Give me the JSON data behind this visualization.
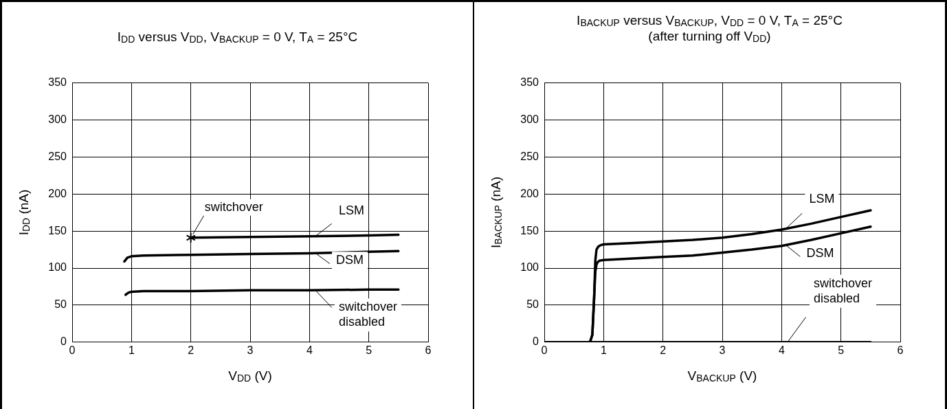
{
  "chart_data": [
    {
      "type": "line",
      "title": "I$_{DD}$ versus V$_{DD}$, V$_{BACKUP}$ = 0 V, T$_{A}$ = 25°C",
      "xlabel": "V$_{DD}$ (V)",
      "ylabel": "I$_{DD}$ (nA)",
      "xlim": [
        0,
        6
      ],
      "xticks": [
        0,
        1,
        2,
        3,
        4,
        5,
        6
      ],
      "ylim": [
        0,
        350
      ],
      "yticks": [
        0,
        50,
        100,
        150,
        200,
        250,
        300,
        350
      ],
      "grid": true,
      "marker": "none",
      "line_style": "solid",
      "annotations": [
        {
          "text": "switchover",
          "x": 2,
          "y": 141
        }
      ],
      "series": [
        {
          "name": "LSM",
          "color": "#000000",
          "x": [
            2,
            3,
            4,
            5,
            5.5
          ],
          "values": [
            141,
            142,
            143,
            144,
            145
          ]
        },
        {
          "name": "DSM",
          "color": "#000000",
          "x": [
            0.88,
            0.93,
            1,
            1.2,
            2,
            3,
            4,
            5,
            5.5
          ],
          "values": [
            109,
            114,
            116,
            117,
            118,
            119,
            120,
            122,
            123
          ]
        },
        {
          "name": "switchover disabled",
          "color": "#000000",
          "x": [
            0.9,
            0.95,
            1,
            1.2,
            2,
            3,
            4,
            5,
            5.5
          ],
          "values": [
            64,
            67,
            68,
            69,
            69,
            70,
            70,
            71,
            71
          ]
        }
      ]
    },
    {
      "type": "line",
      "title": "I$_{BACKUP}$ versus V$_{BACKUP}$, V$_{DD}$ = 0 V, T$_{A}$ = 25°C",
      "subtitle": "(after turning off V$_{DD}$)",
      "xlabel": "V$_{BACKUP}$ (V)",
      "ylabel": "I$_{BACKUP}$ (nA)",
      "xlim": [
        0,
        6
      ],
      "xticks": [
        0,
        1,
        2,
        3,
        4,
        5,
        6
      ],
      "ylim": [
        0,
        350
      ],
      "yticks": [
        0,
        50,
        100,
        150,
        200,
        250,
        300,
        350
      ],
      "grid": true,
      "marker": "none",
      "line_style": "solid",
      "series": [
        {
          "name": "LSM",
          "color": "#000000",
          "x": [
            0.77,
            0.81,
            0.84,
            0.86,
            0.88,
            0.91,
            0.95,
            1,
            1.5,
            2,
            2.5,
            3,
            3.5,
            4,
            4.5,
            5,
            5.5
          ],
          "values": [
            0,
            10,
            60,
            110,
            125,
            129,
            131,
            132,
            134,
            136,
            138,
            141,
            146,
            152,
            160,
            169,
            178
          ]
        },
        {
          "name": "DSM",
          "color": "#000000",
          "x": [
            0.77,
            0.81,
            0.84,
            0.86,
            0.88,
            0.9,
            0.93,
            1,
            1.5,
            2,
            2.5,
            3,
            3.5,
            4,
            4.5,
            5,
            5.5
          ],
          "values": [
            0,
            10,
            60,
            95,
            105,
            108,
            110,
            111,
            113,
            115,
            117,
            121,
            125,
            130,
            138,
            147,
            156
          ]
        },
        {
          "name": "switchover disabled",
          "color": "#000000",
          "x": [
            0,
            1,
            2,
            3,
            4,
            5,
            5.5
          ],
          "values": [
            0,
            0,
            0,
            0,
            0,
            0,
            0
          ]
        }
      ]
    }
  ]
}
